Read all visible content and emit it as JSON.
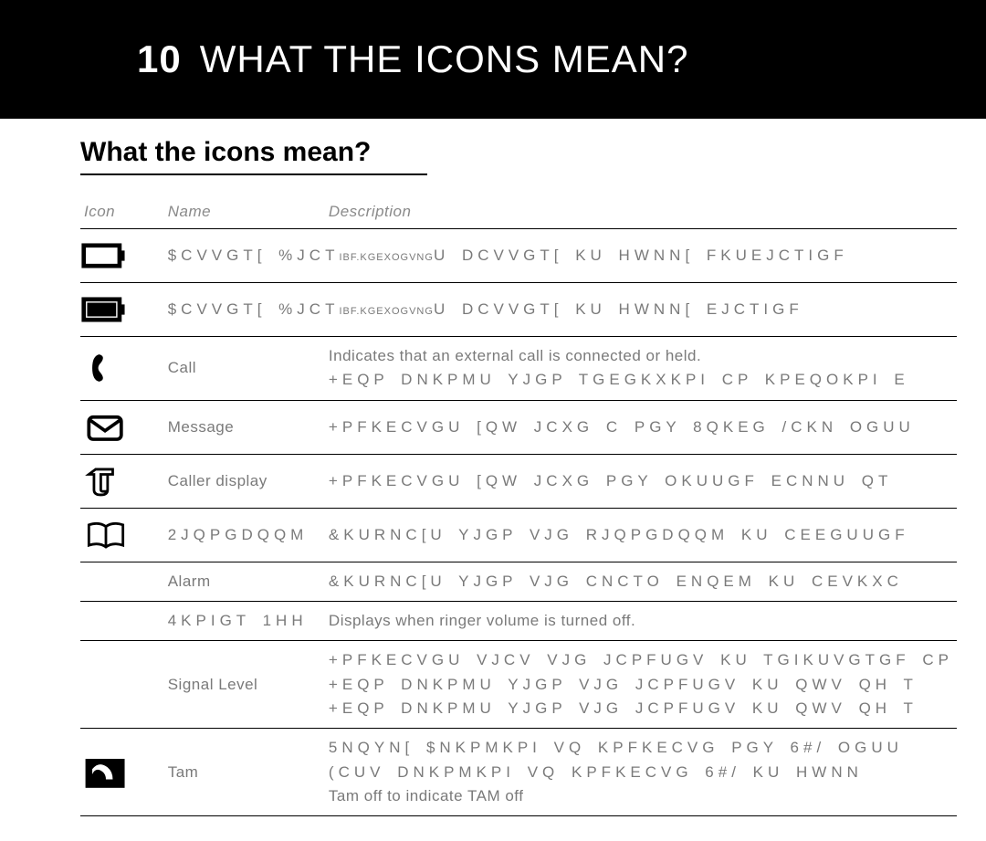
{
  "header": {
    "number": "10",
    "title": "WHAT THE ICONS MEAN?"
  },
  "subtitle": "What the icons mean?",
  "columns": {
    "icon": "Icon",
    "name": "Name",
    "desc": "Description"
  },
  "rows": [
    {
      "icon": "battery-empty",
      "name": "$CVVGT[ %JCT",
      "name_suffix": "IBF.KGEXOGVNG",
      "desc_lines": [
        "U DCVVGT[ KU HWNN[ FKUEJCTIGF"
      ]
    },
    {
      "icon": "battery-full",
      "name": "$CVVGT[ %JCT",
      "name_suffix": "IBF.KGEXOGVNG",
      "desc_lines": [
        "U DCVVGT[ KU HWNN[ EJCTIGF"
      ]
    },
    {
      "icon": "phone",
      "name": "Call",
      "desc_plain": "Indicates that an external call is connected or held.",
      "desc_lines": [
        "+EQP DNKPMU YJGP TGEGKXKPI CP KPEQOKPI E"
      ]
    },
    {
      "icon": "envelope",
      "name": "Message",
      "desc_lines": [
        "+PFKECVGU [QW JCXG C PGY 8QKEG /CKN OGUU"
      ]
    },
    {
      "icon": "caller-display",
      "name": "Caller display",
      "desc_lines": [
        "+PFKECVGU [QW JCXG PGY OKUUGF ECNNU  QT"
      ]
    },
    {
      "icon": "book",
      "name": "2JQPGDQQM",
      "desc_lines": [
        "&KURNC[U YJGP VJG RJQPGDQQM KU CEEGUUGF"
      ]
    },
    {
      "icon": "none",
      "name": "Alarm",
      "desc_lines": [
        "&KURNC[U YJGP VJG CNCTO ENQEM KU CEVKXC"
      ]
    },
    {
      "icon": "none",
      "name": "4KPIGT 1HH",
      "desc_plain_only": "Displays when ringer volume is turned off."
    },
    {
      "icon": "none",
      "name": "Signal Level",
      "desc_lines": [
        "+PFKECVGU VJCV VJG JCPFUGV KU TGIKUVGTGF CP",
        "+EQP DNKPMU YJGP VJG JCPFUGV KU QWV QH T",
        "+EQP DNKPMU YJGP VJG JCPFUGV KU QWV QH T"
      ]
    },
    {
      "icon": "tam",
      "name": "Tam",
      "desc_lines": [
        "5NQYN[ $NKPMKPI VQ KPFKECVG PGY 6#/ OGUU",
        "(CUV DNKPMKPI VQ KPFKECVG 6#/ KU HWNN"
      ],
      "desc_plain_after": "Tam off to indicate TAM off"
    }
  ],
  "colors": {
    "text_muted": "#7a7a7a",
    "rule": "#000000",
    "bg": "#ffffff",
    "header_bg": "#000000",
    "header_fg": "#ffffff"
  }
}
